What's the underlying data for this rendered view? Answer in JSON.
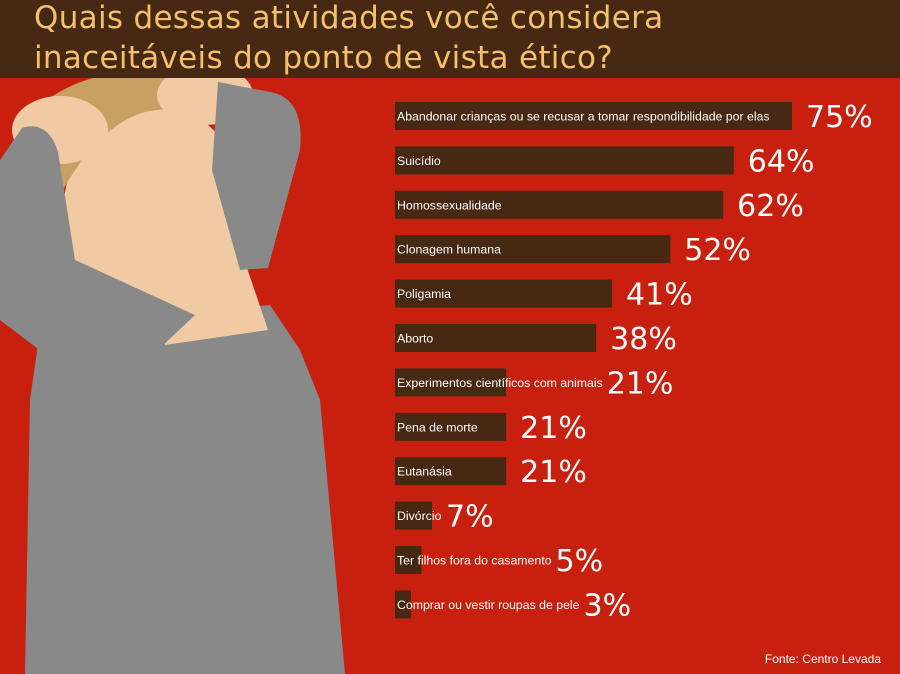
{
  "title": {
    "line1": "Quais dessas atividades você considera",
    "line2": "inaceitáveis do ponto de vista ético?"
  },
  "source": "Fonte: Centro Levada",
  "colors": {
    "background": "#c8200f",
    "title_bar": "#462813",
    "title_text": "#f2c06e",
    "bar": "#462813",
    "bar_label": "#ffffff",
    "value_label": "#ffffff",
    "skin": "#f0caa3",
    "hair": "#c8a062",
    "shirt": "#898989"
  },
  "illustration_icon": "stressed-person-holding-head-icon",
  "chart_data": {
    "type": "bar",
    "orientation": "horizontal",
    "title": "Quais dessas atividades você considera inaceitáveis do ponto de vista ético?",
    "categories": [
      "Abandonar crianças ou se recusar a tomar respondibilidade por elas",
      "Suicídio",
      "Homossexualidade",
      "Clonagem humana",
      "Poligamia",
      "Aborto",
      "Experimentos científicos com animais",
      "Pena de morte",
      "Eutanásia",
      "Divórcio",
      "Ter filhos fora do casamento",
      "Comprar ou vestir roupas de pele"
    ],
    "values": [
      75,
      64,
      62,
      52,
      41,
      38,
      21,
      21,
      21,
      7,
      5,
      3
    ],
    "value_labels": [
      "75%",
      "64%",
      "62%",
      "52%",
      "41%",
      "38%",
      "21%",
      "21%",
      "21%",
      "7%",
      "5%",
      "3%"
    ],
    "unit": "%",
    "xlim": [
      0,
      75
    ],
    "grid": false,
    "legend": "none"
  }
}
